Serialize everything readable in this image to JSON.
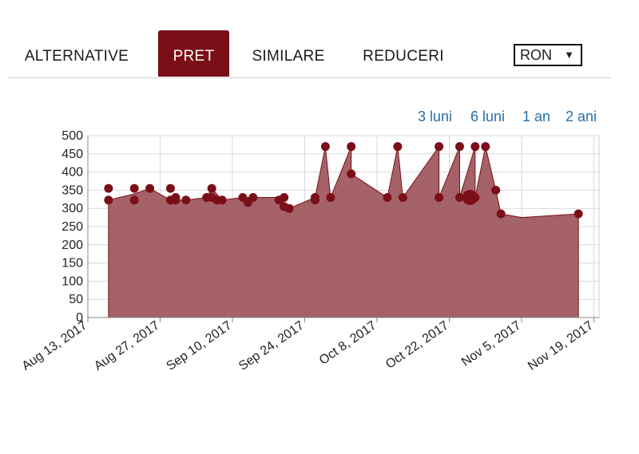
{
  "tabs": [
    {
      "label": "ALTERNATIVE",
      "active": false
    },
    {
      "label": "PRET",
      "active": true
    },
    {
      "label": "SIMILARE",
      "active": false
    },
    {
      "label": "REDUCERI",
      "active": false
    }
  ],
  "currency": {
    "selected": "RON",
    "arrow": "▼"
  },
  "ranges": [
    "3 luni",
    "6 luni",
    "1 an",
    "2 ani"
  ],
  "colors": {
    "accent": "#7a0f17",
    "area": "#a05a60",
    "point": "#7a0f17",
    "link": "#2a6ea8"
  },
  "chart_data": {
    "type": "area",
    "title": "",
    "xlabel": "",
    "ylabel": "",
    "ylim": [
      0,
      500
    ],
    "yticks": [
      0,
      50,
      100,
      150,
      200,
      250,
      300,
      350,
      400,
      450,
      500
    ],
    "xlim": [
      "2017-08-13",
      "2017-11-20"
    ],
    "xticks": [
      {
        "date": "2017-08-13",
        "label": "Aug 13, 2017"
      },
      {
        "date": "2017-08-27",
        "label": "Aug 27, 2017"
      },
      {
        "date": "2017-09-10",
        "label": "Sep 10, 2017"
      },
      {
        "date": "2017-09-24",
        "label": "Sep 24, 2017"
      },
      {
        "date": "2017-10-08",
        "label": "Oct 8, 2017"
      },
      {
        "date": "2017-10-22",
        "label": "Oct 22, 2017"
      },
      {
        "date": "2017-11-05",
        "label": "Nov 5, 2017"
      },
      {
        "date": "2017-11-19",
        "label": "Nov 19, 2017"
      }
    ],
    "grid": true,
    "points": [
      {
        "x": "2017-08-17",
        "y": 355
      },
      {
        "x": "2017-08-17",
        "y": 323
      },
      {
        "x": "2017-08-22",
        "y": 355
      },
      {
        "x": "2017-08-22",
        "y": 323
      },
      {
        "x": "2017-08-25",
        "y": 355
      },
      {
        "x": "2017-08-29",
        "y": 355
      },
      {
        "x": "2017-08-29",
        "y": 323
      },
      {
        "x": "2017-08-30",
        "y": 323
      },
      {
        "x": "2017-08-30",
        "y": 330
      },
      {
        "x": "2017-09-01",
        "y": 323
      },
      {
        "x": "2017-09-05",
        "y": 330
      },
      {
        "x": "2017-09-06",
        "y": 355
      },
      {
        "x": "2017-09-06",
        "y": 330
      },
      {
        "x": "2017-09-07",
        "y": 323
      },
      {
        "x": "2017-09-08",
        "y": 323
      },
      {
        "x": "2017-09-12",
        "y": 330
      },
      {
        "x": "2017-09-13",
        "y": 316
      },
      {
        "x": "2017-09-14",
        "y": 330
      },
      {
        "x": "2017-09-19",
        "y": 323
      },
      {
        "x": "2017-09-20",
        "y": 330
      },
      {
        "x": "2017-09-20",
        "y": 305
      },
      {
        "x": "2017-09-21",
        "y": 300
      },
      {
        "x": "2017-09-26",
        "y": 330
      },
      {
        "x": "2017-09-26",
        "y": 323
      },
      {
        "x": "2017-09-28",
        "y": 470
      },
      {
        "x": "2017-09-29",
        "y": 330
      },
      {
        "x": "2017-10-03",
        "y": 470
      },
      {
        "x": "2017-10-03",
        "y": 395
      },
      {
        "x": "2017-10-10",
        "y": 330
      },
      {
        "x": "2017-10-12",
        "y": 470
      },
      {
        "x": "2017-10-13",
        "y": 330
      },
      {
        "x": "2017-10-20",
        "y": 470
      },
      {
        "x": "2017-10-20",
        "y": 330
      },
      {
        "x": "2017-10-24",
        "y": 470
      },
      {
        "x": "2017-10-24",
        "y": 330
      },
      {
        "x": "2017-10-27",
        "y": 470
      },
      {
        "x": "2017-10-27",
        "y": 330
      },
      {
        "x": "2017-10-29",
        "y": 470
      },
      {
        "x": "2017-10-31",
        "y": 350
      },
      {
        "x": "2017-11-01",
        "y": 285
      },
      {
        "x": "2017-11-16",
        "y": 285
      }
    ],
    "area": [
      {
        "x": "2017-08-17",
        "y": 323
      },
      {
        "x": "2017-08-22",
        "y": 340
      },
      {
        "x": "2017-08-25",
        "y": 355
      },
      {
        "x": "2017-08-29",
        "y": 323
      },
      {
        "x": "2017-09-01",
        "y": 323
      },
      {
        "x": "2017-09-05",
        "y": 330
      },
      {
        "x": "2017-09-06",
        "y": 355
      },
      {
        "x": "2017-09-08",
        "y": 323
      },
      {
        "x": "2017-09-12",
        "y": 330
      },
      {
        "x": "2017-09-14",
        "y": 330
      },
      {
        "x": "2017-09-19",
        "y": 330
      },
      {
        "x": "2017-09-21",
        "y": 300
      },
      {
        "x": "2017-09-26",
        "y": 330
      },
      {
        "x": "2017-09-28",
        "y": 470
      },
      {
        "x": "2017-09-29",
        "y": 330
      },
      {
        "x": "2017-10-03",
        "y": 470
      },
      {
        "x": "2017-10-03",
        "y": 395
      },
      {
        "x": "2017-10-10",
        "y": 330
      },
      {
        "x": "2017-10-12",
        "y": 470
      },
      {
        "x": "2017-10-13",
        "y": 330
      },
      {
        "x": "2017-10-20",
        "y": 470
      },
      {
        "x": "2017-10-20",
        "y": 330
      },
      {
        "x": "2017-10-24",
        "y": 470
      },
      {
        "x": "2017-10-24",
        "y": 330
      },
      {
        "x": "2017-10-27",
        "y": 470
      },
      {
        "x": "2017-10-27",
        "y": 330
      },
      {
        "x": "2017-10-29",
        "y": 470
      },
      {
        "x": "2017-10-31",
        "y": 350
      },
      {
        "x": "2017-11-01",
        "y": 285
      },
      {
        "x": "2017-11-05",
        "y": 275
      },
      {
        "x": "2017-11-16",
        "y": 285
      }
    ]
  }
}
